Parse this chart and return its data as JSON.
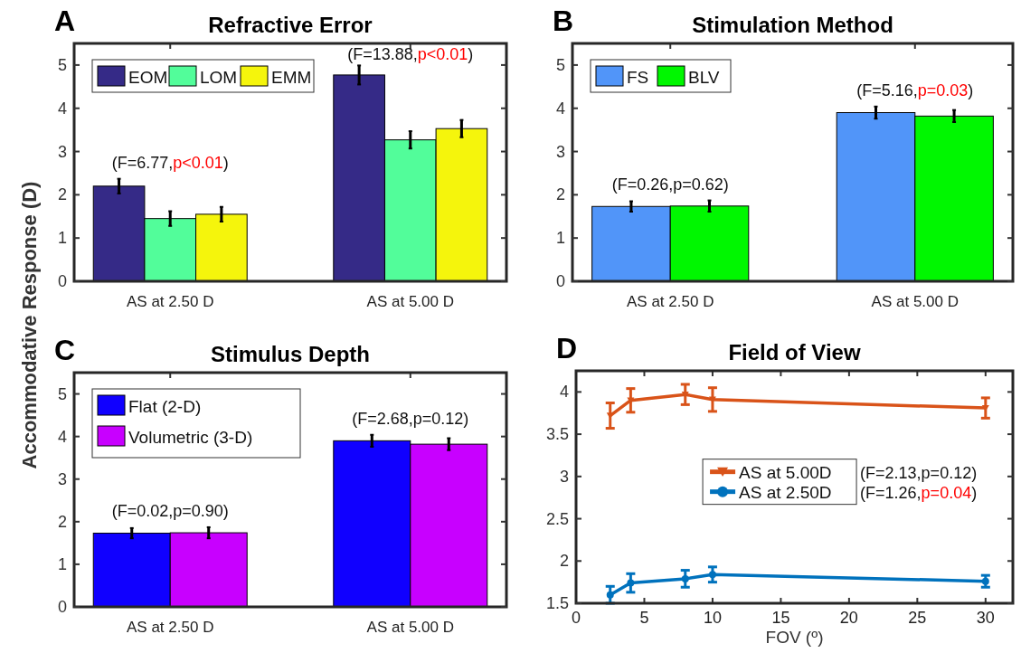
{
  "chart_data": [
    {
      "type": "bar",
      "title": "Refractive Error",
      "ylabel": "Accommodative Response (D)",
      "categories": [
        "AS at 2.50 D",
        "AS at 5.00 D"
      ],
      "series": [
        {
          "name": "EOM",
          "color": "#352a87",
          "values": [
            2.2,
            4.77
          ],
          "errors": [
            0.17,
            0.22
          ]
        },
        {
          "name": "LOM",
          "color": "#52fd9a",
          "values": [
            1.45,
            3.27
          ],
          "errors": [
            0.17,
            0.2
          ]
        },
        {
          "name": "EMM",
          "color": "#f5f50c",
          "values": [
            1.55,
            3.53
          ],
          "errors": [
            0.17,
            0.2
          ]
        }
      ],
      "ylim": [
        0,
        5.5
      ],
      "yticks": [
        0,
        1,
        2,
        3,
        4,
        5
      ],
      "legend": "top left",
      "annotations": [
        "A",
        "(F=6.77,p<0.01)",
        "(F=13.88,p<0.01)"
      ]
    },
    {
      "type": "bar",
      "title": "Stimulation Method",
      "categories": [
        "AS at 2.50 D",
        "AS at 5.00 D"
      ],
      "series": [
        {
          "name": "FS",
          "color": "#5195f9",
          "values": [
            1.73,
            3.9
          ],
          "errors": [
            0.12,
            0.14
          ]
        },
        {
          "name": "BLV",
          "color": "#00f700",
          "values": [
            1.74,
            3.82
          ],
          "errors": [
            0.13,
            0.14
          ]
        }
      ],
      "ylim": [
        0,
        5.5
      ],
      "yticks": [
        0,
        1,
        2,
        3,
        4,
        5
      ],
      "legend": "top left",
      "annotations": [
        "B",
        "(F=0.26,p=0.62)",
        "(F=5.16,p=0.03)"
      ]
    },
    {
      "type": "bar",
      "title": "Stimulus Depth",
      "categories": [
        "AS at 2.50 D",
        "AS at 5.00 D"
      ],
      "series": [
        {
          "name": "Flat (2-D)",
          "color": "#1000ff",
          "values": [
            1.73,
            3.9
          ],
          "errors": [
            0.12,
            0.14
          ]
        },
        {
          "name": "Volumetric (3-D)",
          "color": "#c800ff",
          "values": [
            1.74,
            3.82
          ],
          "errors": [
            0.13,
            0.14
          ]
        }
      ],
      "ylim": [
        0,
        5.5
      ],
      "yticks": [
        0,
        1,
        2,
        3,
        4,
        5
      ],
      "legend": "top left",
      "annotations": [
        "C",
        "(F=0.02,p=0.90)",
        "(F=2.68,p=0.12)"
      ]
    },
    {
      "type": "line",
      "title": "Field of View",
      "xlabel": "FOV (º)",
      "series": [
        {
          "name": "AS at 5.00D",
          "color": "#d95319",
          "marker": "triangle",
          "x": [
            2.5,
            4,
            8,
            10,
            30
          ],
          "values": [
            3.72,
            3.9,
            3.97,
            3.91,
            3.81
          ],
          "errors": [
            0.15,
            0.14,
            0.12,
            0.14,
            0.12
          ]
        },
        {
          "name": "AS at 2.50D",
          "color": "#0072bd",
          "marker": "circle",
          "x": [
            2.5,
            4,
            8,
            10,
            30
          ],
          "values": [
            1.6,
            1.74,
            1.79,
            1.84,
            1.76
          ],
          "errors": [
            0.1,
            0.11,
            0.1,
            0.09,
            0.07
          ]
        }
      ],
      "xlim": [
        0,
        32
      ],
      "xticks": [
        0,
        5,
        10,
        15,
        20,
        25,
        30
      ],
      "ylim": [
        1.5,
        4.25
      ],
      "yticks": [
        1.5,
        2,
        2.5,
        3,
        3.5,
        4
      ],
      "legend": "center",
      "annotations": [
        "D",
        "(F=2.13,p=0.12)",
        "(F=1.26,p=0.04)"
      ]
    }
  ]
}
